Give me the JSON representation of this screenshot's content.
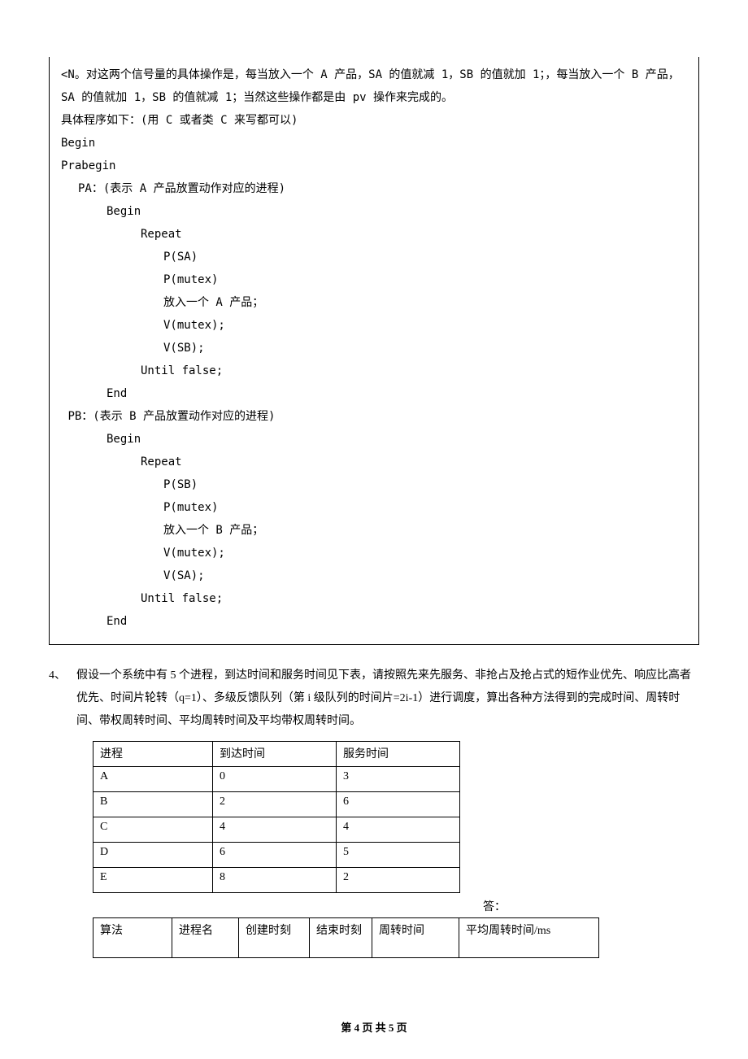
{
  "box": {
    "para1": "<N。对这两个信号量的具体操作是，每当放入一个 A 产品，SA 的值就减 1，SB 的值就加 1；，每当放入一个 B 产品，SA 的值就加 1，SB 的值就减 1；当然这些操作都是由 pv 操作来完成的。",
    "para2": "具体程序如下：(用 C 或者类 C 来写都可以)",
    "code": {
      "l1": " Begin",
      "l2": "Prabegin",
      "l3": "PA：(表示 A 产品放置动作对应的进程)",
      "l4": "Begin",
      "l5": "Repeat",
      "l6": "P(SA)",
      "l7": "P(mutex)",
      "l8": "放入一个 A 产品；",
      "l9": "V(mutex);",
      "l10": "V(SB);",
      "l11": "Until false;",
      "l12": "End",
      "l13": "PB：(表示 B 产品放置动作对应的进程)",
      "l14": "Begin",
      "l15": "Repeat",
      "l16": "P(SB)",
      "l17": "P(mutex)",
      "l18": "放入一个 B 产品；",
      "l19": "V(mutex);",
      "l20": "V(SA);",
      "l21": "Until false;",
      "l22": "End"
    }
  },
  "q4": {
    "num": "4、",
    "text": "假设一个系统中有 5 个进程，到达时间和服务时间见下表，请按照先来先服务、非抢占及抢占式的短作业优先、响应比高者优先、时间片轮转（q=1）、多级反馈队列（第 i 级队列的时间片=2i-1）进行调度，算出各种方法得到的完成时间、周转时间、带权周转时间、平均周转时间及平均带权周转时间。"
  },
  "table1": {
    "headers": {
      "h1": "进程",
      "h2": "到达时间",
      "h3": "服务时间"
    },
    "rows": [
      {
        "c1": "A",
        "c2": "0",
        "c3": "3"
      },
      {
        "c1": "B",
        "c2": "2",
        "c3": "6"
      },
      {
        "c1": "C",
        "c2": "4",
        "c3": "4"
      },
      {
        "c1": "D",
        "c2": "6",
        "c3": "5"
      },
      {
        "c1": "E",
        "c2": "8",
        "c3": "2"
      }
    ]
  },
  "answer_label": "答：",
  "table2": {
    "headers": {
      "h1": "算法",
      "h2": "进程名",
      "h3": "创建时刻",
      "h4": "结束时刻",
      "h5": "周转时间",
      "h6": "平均周转时间/ms"
    }
  },
  "footer": "第 4 页 共 5 页"
}
